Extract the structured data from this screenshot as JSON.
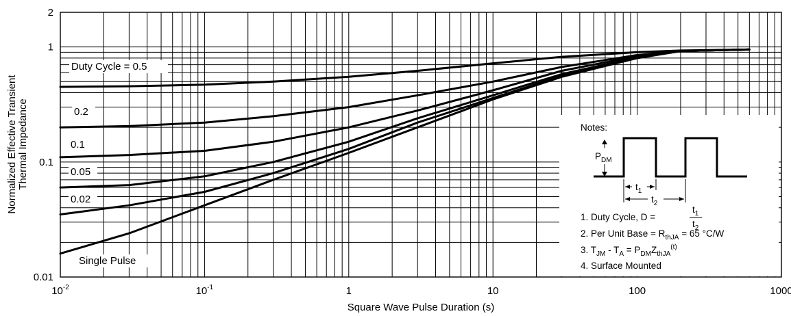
{
  "chart_data": {
    "type": "line",
    "xscale": "log",
    "yscale": "log",
    "xlim": [
      0.01,
      1000
    ],
    "ylim": [
      0.01,
      2
    ],
    "grid": true,
    "xlabel": "Square Wave Pulse Duration (s)",
    "ylabel_line1": "Normalized Effective Transient",
    "ylabel_line2": "Thermal Impedance",
    "x_ticks": [
      {
        "value": 0.01,
        "base": "10",
        "exp": "-2"
      },
      {
        "value": 0.1,
        "base": "10",
        "exp": "-1"
      },
      {
        "value": 1,
        "text": "1"
      },
      {
        "value": 10,
        "text": "10"
      },
      {
        "value": 100,
        "text": "100"
      },
      {
        "value": 1000,
        "text": "1000"
      }
    ],
    "y_ticks": [
      {
        "value": 2,
        "text": "2"
      },
      {
        "value": 1,
        "text": "1"
      },
      {
        "value": 0.1,
        "text": "0.1"
      },
      {
        "value": 0.01,
        "text": "0.01"
      }
    ],
    "series": [
      {
        "name": "Duty Cycle = 0.5",
        "x": [
          0.01,
          0.03,
          0.1,
          0.3,
          1,
          3,
          10,
          30,
          100,
          200,
          600
        ],
        "y": [
          0.45,
          0.455,
          0.47,
          0.5,
          0.55,
          0.62,
          0.72,
          0.82,
          0.9,
          0.93,
          0.95
        ]
      },
      {
        "name": "0.2",
        "x": [
          0.01,
          0.03,
          0.1,
          0.3,
          1,
          3,
          10,
          30,
          100,
          200,
          600
        ],
        "y": [
          0.2,
          0.205,
          0.22,
          0.25,
          0.3,
          0.38,
          0.5,
          0.67,
          0.85,
          0.92,
          0.95
        ]
      },
      {
        "name": "0.1",
        "x": [
          0.01,
          0.03,
          0.1,
          0.3,
          1,
          3,
          10,
          30,
          100,
          200,
          600
        ],
        "y": [
          0.11,
          0.115,
          0.125,
          0.15,
          0.2,
          0.28,
          0.42,
          0.62,
          0.83,
          0.92,
          0.95
        ]
      },
      {
        "name": "0.05",
        "x": [
          0.01,
          0.03,
          0.1,
          0.3,
          1,
          3,
          10,
          30,
          100,
          200,
          600
        ],
        "y": [
          0.06,
          0.063,
          0.075,
          0.1,
          0.15,
          0.24,
          0.38,
          0.58,
          0.81,
          0.92,
          0.95
        ]
      },
      {
        "name": "0.02",
        "x": [
          0.01,
          0.03,
          0.1,
          0.3,
          1,
          3,
          10,
          30,
          100,
          200,
          600
        ],
        "y": [
          0.035,
          0.042,
          0.055,
          0.08,
          0.13,
          0.22,
          0.36,
          0.56,
          0.8,
          0.92,
          0.95
        ]
      },
      {
        "name": "Single Pulse",
        "x": [
          0.01,
          0.03,
          0.1,
          0.3,
          1,
          3,
          10,
          30,
          100,
          200,
          600
        ],
        "y": [
          0.016,
          0.024,
          0.042,
          0.07,
          0.12,
          0.2,
          0.35,
          0.55,
          0.8,
          0.92,
          0.95
        ]
      }
    ],
    "notes": {
      "title": "Notes:",
      "pdm": "P",
      "pdm_sub": "DM",
      "t1": "t",
      "t1_sub": "1",
      "t2": "t",
      "t2_sub": "2",
      "note1": "1. Duty Cycle, D =",
      "note2_a": "2. Per Unit Base = R",
      "note2_sub": "thJA",
      "note2_b": " = 65 °C/W",
      "note3_a": "3. T",
      "note3_sub1": "JM",
      "note3_b": " - T",
      "note3_sub2": "A",
      "note3_c": " = P",
      "note3_sub3": "DM",
      "note3_d": "Z",
      "note3_sub4": "thJA",
      "note3_sup": "(t)",
      "note4": "4. Surface Mounted"
    }
  }
}
